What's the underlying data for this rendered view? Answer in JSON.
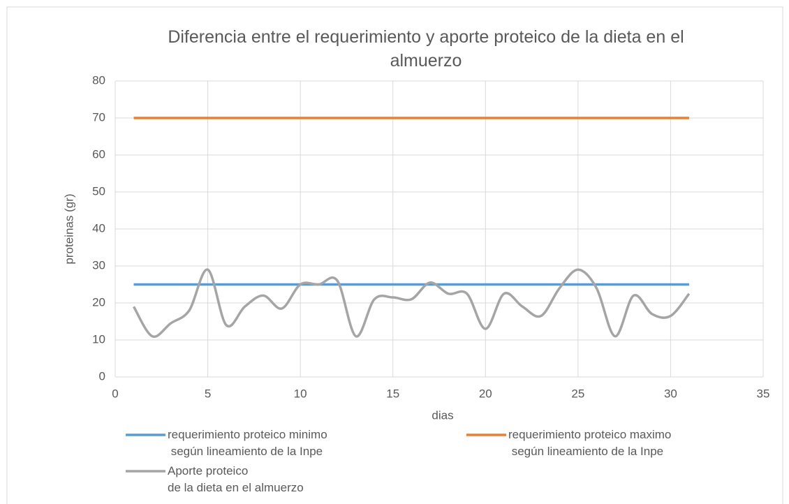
{
  "chart_data": {
    "type": "line",
    "smooth": true,
    "title": "Diferencia entre el requerimiento y aporte proteico de la dieta en el almuerzo",
    "xlabel": "dias",
    "ylabel": "proteinas (gr)",
    "x": [
      1,
      2,
      3,
      4,
      5,
      6,
      7,
      8,
      9,
      10,
      11,
      12,
      13,
      14,
      15,
      16,
      17,
      18,
      19,
      20,
      21,
      22,
      23,
      24,
      25,
      26,
      27,
      28,
      29,
      30,
      31
    ],
    "series": [
      {
        "name": "requerimiento proteico minimo\n según lineamiento de la Inpe",
        "color": "#5b9bd5",
        "values": [
          25,
          25,
          25,
          25,
          25,
          25,
          25,
          25,
          25,
          25,
          25,
          25,
          25,
          25,
          25,
          25,
          25,
          25,
          25,
          25,
          25,
          25,
          25,
          25,
          25,
          25,
          25,
          25,
          25,
          25,
          25
        ]
      },
      {
        "name": "requerimiento proteico maximo\n según lineamiento de la Inpe",
        "color": "#ed7d31",
        "values": [
          70,
          70,
          70,
          70,
          70,
          70,
          70,
          70,
          70,
          70,
          70,
          70,
          70,
          70,
          70,
          70,
          70,
          70,
          70,
          70,
          70,
          70,
          70,
          70,
          70,
          70,
          70,
          70,
          70,
          70,
          70
        ]
      },
      {
        "name": "Aporte proteico\nde la dieta en el almuerzo",
        "color": "#a5a5a5",
        "values": [
          19,
          11,
          14.5,
          18,
          29,
          14,
          19,
          22,
          18.5,
          25,
          25,
          26,
          11,
          21,
          21.5,
          21,
          25.5,
          22.5,
          22.5,
          13,
          22.5,
          19,
          16.5,
          24,
          29,
          24,
          11,
          22,
          17,
          16.5,
          22.5
        ]
      }
    ],
    "xlim": [
      0,
      35
    ],
    "xticks": [
      0,
      5,
      10,
      15,
      20,
      25,
      30,
      35
    ],
    "ylim": [
      0,
      80
    ],
    "yticks": [
      0,
      10,
      20,
      30,
      40,
      50,
      60,
      70,
      80
    ],
    "grid": true,
    "legend": "bottom"
  }
}
